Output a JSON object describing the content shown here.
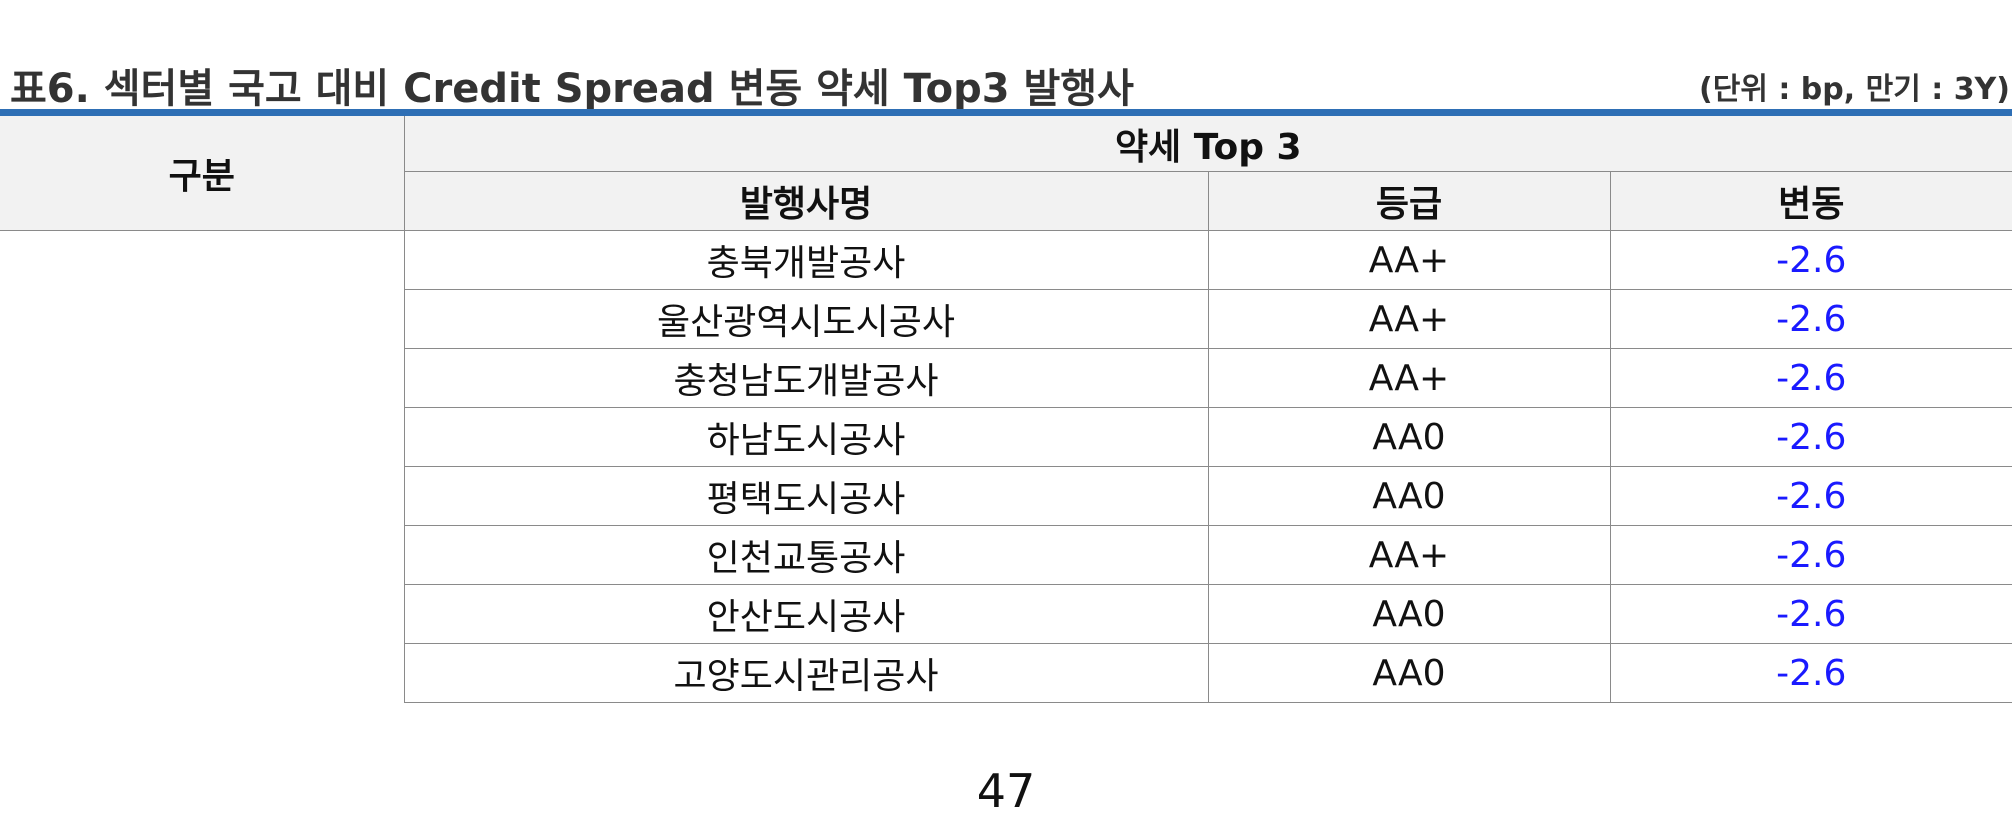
{
  "table": {
    "title": "표6. 섹터별 국고 대비 Credit Spread 변동 약세 Top3 발행사",
    "unit_note": "(단위 : bp, 만기 : 3Y)",
    "headers": {
      "group": "구분",
      "top3": "약세 Top 3",
      "issuer": "발행사명",
      "grade": "등급",
      "change": "변동"
    },
    "group_label": "",
    "rows": [
      {
        "issuer": "충북개발공사",
        "grade": "AA+",
        "change": "-2.6"
      },
      {
        "issuer": "울산광역시도시공사",
        "grade": "AA+",
        "change": "-2.6"
      },
      {
        "issuer": "충청남도개발공사",
        "grade": "AA+",
        "change": "-2.6"
      },
      {
        "issuer": "하남도시공사",
        "grade": "AA0",
        "change": "-2.6"
      },
      {
        "issuer": "평택도시공사",
        "grade": "AA0",
        "change": "-2.6"
      },
      {
        "issuer": "인천교통공사",
        "grade": "AA+",
        "change": "-2.6"
      },
      {
        "issuer": "안산도시공사",
        "grade": "AA0",
        "change": "-2.6"
      },
      {
        "issuer": "고양도시관리공사",
        "grade": "AA0",
        "change": "-2.6"
      }
    ],
    "colors": {
      "accent_rule": "#2e6fb5",
      "negative_value": "#1a1aff",
      "header_bg": "#f2f2f2"
    }
  },
  "page_number": "47"
}
